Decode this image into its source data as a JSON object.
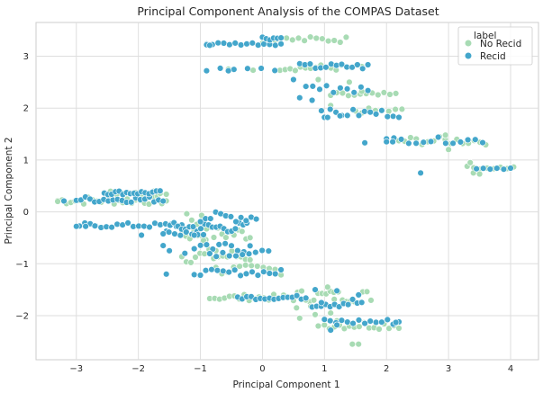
{
  "chart_data": {
    "type": "scatter",
    "title": "Principal Component Analysis of the COMPAS Dataset",
    "xlabel": "Principal Component 1",
    "ylabel": "Principal Component 2",
    "xlim": [
      -3.65,
      4.45
    ],
    "ylim": [
      -2.85,
      3.65
    ],
    "xticks": [
      -3,
      -2,
      -1,
      0,
      1,
      2,
      3,
      4
    ],
    "yticks": [
      -2,
      -1,
      0,
      1,
      2,
      3
    ],
    "grid": true,
    "legend": {
      "title": "label",
      "placement": "top-right"
    },
    "series": [
      {
        "name": "No Recid",
        "color": "#a8dbb4",
        "clusters": [
          {
            "x0": -3.3,
            "x1": -1.55,
            "y": 0.22,
            "n": 26,
            "dy": 0.08
          },
          {
            "x0": -2.45,
            "x1": -1.55,
            "y": 0.36,
            "n": 10,
            "dy": 0.04
          },
          {
            "x0": -1.3,
            "x1": -0.2,
            "y": -0.42,
            "n": 18,
            "dy": 0.14
          },
          {
            "x0": -1.3,
            "x1": -0.2,
            "y": -0.85,
            "n": 16,
            "dy": 0.14
          },
          {
            "x0": -0.75,
            "x1": 0.3,
            "y": -1.12,
            "n": 12,
            "dy": 0.1
          },
          {
            "x0": -0.85,
            "x1": 0.5,
            "y": -1.65,
            "n": 18,
            "dy": 0.06
          },
          {
            "x0": 0.5,
            "x1": 1.75,
            "y": -1.62,
            "n": 20,
            "dy": 0.12
          },
          {
            "x0": 1.0,
            "x1": 2.2,
            "y": -2.18,
            "n": 16,
            "dy": 0.08
          },
          {
            "x0": 0.1,
            "x1": 1.35,
            "y": 3.32,
            "n": 14,
            "dy": 0.06
          },
          {
            "x0": 0.2,
            "x1": 1.6,
            "y": 2.78,
            "n": 18,
            "dy": 0.06
          },
          {
            "x0": 1.1,
            "x1": 2.15,
            "y": 2.25,
            "n": 12,
            "dy": 0.05
          },
          {
            "x0": 1.5,
            "x1": 2.25,
            "y": 1.95,
            "n": 8,
            "dy": 0.05
          },
          {
            "x0": 2.2,
            "x1": 3.6,
            "y": 1.37,
            "n": 16,
            "dy": 0.08
          },
          {
            "x0": 3.3,
            "x1": 4.05,
            "y": 0.85,
            "n": 8,
            "dy": 0.03
          },
          {
            "x0": -1.3,
            "x1": -0.9,
            "y": -0.2,
            "n": 6,
            "dy": 0.2
          }
        ],
        "points": [
          {
            "x": -3.3,
            "y": 0.2
          },
          {
            "x": 0.78,
            "y": -1.82
          },
          {
            "x": 0.85,
            "y": -1.98
          },
          {
            "x": 0.9,
            "y": -2.2
          },
          {
            "x": 1.05,
            "y": -1.45
          },
          {
            "x": 1.15,
            "y": -1.55
          },
          {
            "x": 1.1,
            "y": -1.95
          },
          {
            "x": 1.2,
            "y": -2.1
          },
          {
            "x": 1.45,
            "y": -2.55
          },
          {
            "x": 1.55,
            "y": -2.55
          },
          {
            "x": 0.55,
            "y": -1.85
          },
          {
            "x": 3.35,
            "y": 0.95
          },
          {
            "x": 3.4,
            "y": 0.75
          },
          {
            "x": 3.5,
            "y": 0.73
          },
          {
            "x": 2.95,
            "y": 1.48
          },
          {
            "x": 3.0,
            "y": 1.2
          },
          {
            "x": 0.9,
            "y": 2.55
          },
          {
            "x": 1.4,
            "y": 2.5
          },
          {
            "x": 1.6,
            "y": 2.32
          },
          {
            "x": 1.1,
            "y": 2.05
          },
          {
            "x": 0.2,
            "y": 3.35
          },
          {
            "x": 0.0,
            "y": 3.25
          },
          {
            "x": -0.55,
            "y": 2.75
          },
          {
            "x": -0.15,
            "y": 2.73
          },
          {
            "x": -0.75,
            "y": -0.75
          },
          {
            "x": -0.95,
            "y": -0.55
          },
          {
            "x": -0.6,
            "y": -0.62
          },
          {
            "x": 0.6,
            "y": -2.05
          },
          {
            "x": 0.7,
            "y": -1.7
          }
        ]
      },
      {
        "name": "Recid",
        "color": "#43a6cb",
        "clusters": [
          {
            "x0": -3.0,
            "x1": -1.6,
            "y": 0.24,
            "n": 20,
            "dy": 0.06
          },
          {
            "x0": -2.55,
            "x1": -1.65,
            "y": 0.37,
            "n": 16,
            "dy": 0.04
          },
          {
            "x0": -2.95,
            "x1": -1.3,
            "y": -0.26,
            "n": 20,
            "dy": 0.05
          },
          {
            "x0": -1.55,
            "x1": -0.25,
            "y": -0.3,
            "n": 22,
            "dy": 0.1
          },
          {
            "x0": -1.6,
            "x1": -0.95,
            "y": -0.42,
            "n": 8,
            "dy": 0.04
          },
          {
            "x0": -1.0,
            "x1": -0.1,
            "y": -0.1,
            "n": 12,
            "dy": 0.1
          },
          {
            "x0": -1.1,
            "x1": -0.2,
            "y": -0.65,
            "n": 10,
            "dy": 0.12
          },
          {
            "x0": -0.85,
            "x1": 0.1,
            "y": -0.8,
            "n": 10,
            "dy": 0.06
          },
          {
            "x0": -1.1,
            "x1": 0.3,
            "y": -1.17,
            "n": 16,
            "dy": 0.06
          },
          {
            "x0": -0.4,
            "x1": 0.7,
            "y": -1.65,
            "n": 16,
            "dy": 0.04
          },
          {
            "x0": 0.8,
            "x1": 1.6,
            "y": -1.75,
            "n": 12,
            "dy": 0.1
          },
          {
            "x0": 1.0,
            "x1": 2.2,
            "y": -2.12,
            "n": 14,
            "dy": 0.06
          },
          {
            "x0": -0.9,
            "x1": 0.3,
            "y": 3.24,
            "n": 14,
            "dy": 0.03
          },
          {
            "x0": 0.0,
            "x1": 0.3,
            "y": 3.35,
            "n": 6,
            "dy": 0.04
          },
          {
            "x0": -0.9,
            "x1": 0.2,
            "y": 2.75,
            "n": 6,
            "dy": 0.03
          },
          {
            "x0": 0.6,
            "x1": 1.7,
            "y": 2.8,
            "n": 14,
            "dy": 0.06
          },
          {
            "x0": 0.7,
            "x1": 1.7,
            "y": 2.4,
            "n": 10,
            "dy": 0.12
          },
          {
            "x0": 1.0,
            "x1": 2.2,
            "y": 1.9,
            "n": 14,
            "dy": 0.08
          },
          {
            "x0": 2.0,
            "x1": 3.55,
            "y": 1.38,
            "n": 14,
            "dy": 0.06
          },
          {
            "x0": 3.45,
            "x1": 4.0,
            "y": 0.84,
            "n": 6,
            "dy": 0.02
          }
        ],
        "points": [
          {
            "x": -3.2,
            "y": 0.21
          },
          {
            "x": -3.0,
            "y": -0.28
          },
          {
            "x": -2.85,
            "y": -0.28
          },
          {
            "x": -2.7,
            "y": -0.27
          },
          {
            "x": -1.55,
            "y": -1.2
          },
          {
            "x": -1.0,
            "y": -1.22
          },
          {
            "x": -1.6,
            "y": -0.65
          },
          {
            "x": -1.5,
            "y": -0.75
          },
          {
            "x": -1.25,
            "y": -0.8
          },
          {
            "x": -1.1,
            "y": -0.45
          },
          {
            "x": -1.95,
            "y": -0.45
          },
          {
            "x": -0.9,
            "y": 3.22
          },
          {
            "x": -0.85,
            "y": 3.21
          },
          {
            "x": -0.9,
            "y": 2.72
          },
          {
            "x": -0.55,
            "y": 2.72
          },
          {
            "x": 0.5,
            "y": 2.55
          },
          {
            "x": 0.6,
            "y": 2.2
          },
          {
            "x": 0.8,
            "y": 2.15
          },
          {
            "x": 0.95,
            "y": 1.95
          },
          {
            "x": 1.05,
            "y": 1.82
          },
          {
            "x": 1.25,
            "y": 1.85
          },
          {
            "x": 1.65,
            "y": 1.33
          },
          {
            "x": 2.55,
            "y": 0.75
          },
          {
            "x": 2.0,
            "y": 1.35
          },
          {
            "x": 2.1,
            "y": 1.35
          },
          {
            "x": 1.2,
            "y": -2.18
          },
          {
            "x": 1.1,
            "y": -2.28
          },
          {
            "x": 1.65,
            "y": -2.15
          },
          {
            "x": 2.15,
            "y": -2.13
          },
          {
            "x": 0.95,
            "y": -1.75
          },
          {
            "x": 1.2,
            "y": -1.52
          },
          {
            "x": 1.55,
            "y": -1.6
          },
          {
            "x": 0.85,
            "y": -1.5
          }
        ]
      }
    ]
  }
}
